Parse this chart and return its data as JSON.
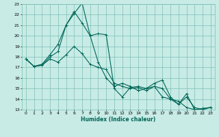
{
  "xlabel": "Humidex (Indice chaleur)",
  "xlim": [
    -0.5,
    23.5
  ],
  "ylim": [
    13,
    23
  ],
  "yticks": [
    13,
    14,
    15,
    16,
    17,
    18,
    19,
    20,
    21,
    22,
    23
  ],
  "xticks": [
    0,
    1,
    2,
    3,
    4,
    5,
    6,
    7,
    8,
    9,
    10,
    11,
    12,
    13,
    14,
    15,
    16,
    17,
    18,
    19,
    20,
    21,
    22,
    23
  ],
  "bg_color": "#c8ebe6",
  "grid_color": "#7bbfb5",
  "line_color": "#006655",
  "lines": [
    {
      "x": [
        0,
        1,
        2,
        3,
        4,
        5,
        6,
        7,
        8,
        9,
        10,
        11,
        12,
        13,
        14,
        15,
        16,
        17,
        18,
        19,
        20,
        21,
        22,
        23
      ],
      "y": [
        17.8,
        17.1,
        17.2,
        17.8,
        17.5,
        18.2,
        19.0,
        18.3,
        17.3,
        17.0,
        16.8,
        15.5,
        15.2,
        15.0,
        15.1,
        14.8,
        15.2,
        14.2,
        14.0,
        13.8,
        13.2,
        13.0,
        13.1,
        13.2
      ]
    },
    {
      "x": [
        0,
        1,
        2,
        3,
        4,
        5,
        6,
        7,
        8,
        9,
        10,
        11,
        12,
        13,
        14,
        15,
        16,
        17,
        18,
        19,
        20,
        21,
        22,
        23
      ],
      "y": [
        17.8,
        17.1,
        17.3,
        18.2,
        19.2,
        21.0,
        22.3,
        21.2,
        20.0,
        20.2,
        20.1,
        15.0,
        14.2,
        15.1,
        15.2,
        15.0,
        15.5,
        15.8,
        14.2,
        13.5,
        14.2,
        13.2,
        13.0,
        13.2
      ]
    },
    {
      "x": [
        0,
        1,
        2,
        3,
        4,
        5,
        6,
        7,
        8,
        9,
        10,
        11,
        12,
        13,
        14,
        15,
        16,
        17,
        18,
        19,
        20,
        21,
        22,
        23
      ],
      "y": [
        17.8,
        17.1,
        17.2,
        18.0,
        18.5,
        21.0,
        22.1,
        23.1,
        20.0,
        17.5,
        16.0,
        15.2,
        15.5,
        15.2,
        14.8,
        15.0,
        15.2,
        15.0,
        14.0,
        13.5,
        14.5,
        13.0,
        13.1,
        13.2
      ]
    }
  ]
}
